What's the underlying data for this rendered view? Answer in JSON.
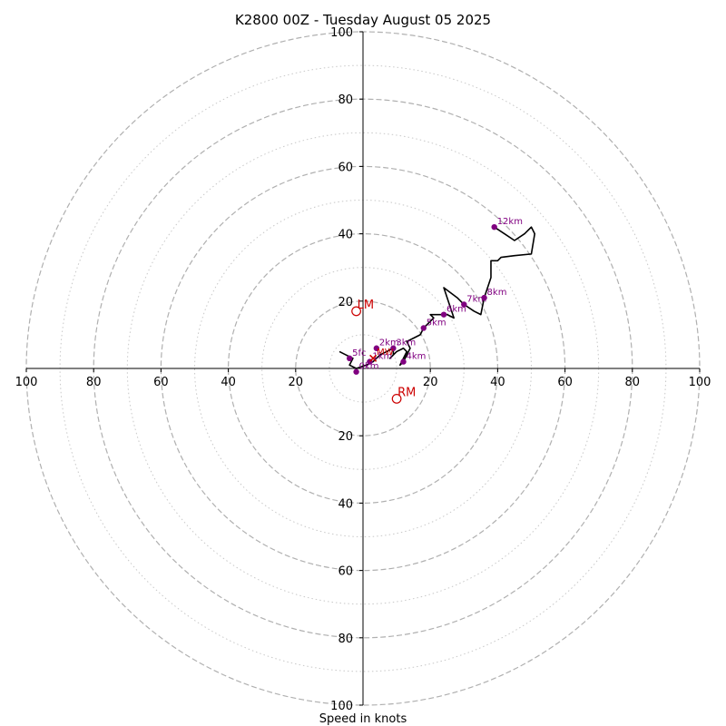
{
  "chart_data": {
    "type": "scatter",
    "subtype": "hodograph",
    "title": "K2800 00Z - Tuesday August 05 2025",
    "xlabel": "Speed in knots",
    "xlim": [
      -100,
      100
    ],
    "ylim": [
      -100,
      100
    ],
    "major_rings": [
      20,
      40,
      60,
      80,
      100
    ],
    "minor_rings": [
      10,
      30,
      50,
      70,
      90
    ],
    "x_tick_labels": [
      "100",
      "80",
      "60",
      "40",
      "20",
      "20",
      "40",
      "60",
      "80",
      "100"
    ],
    "x_tick_values": [
      -100,
      -80,
      -60,
      -40,
      -20,
      20,
      40,
      60,
      80,
      100
    ],
    "y_tick_labels": [
      "100",
      "80",
      "60",
      "40",
      "20",
      "20",
      "40",
      "60",
      "80",
      "100"
    ],
    "y_tick_values": [
      100,
      80,
      60,
      40,
      20,
      -20,
      -40,
      -60,
      -80,
      -100
    ],
    "colors": {
      "trace": "#000000",
      "height_points": "#800080",
      "motion": "#cc0000",
      "ring_major": "#b0b0b0",
      "ring_minor": "#c8c8c8"
    },
    "wind_trace": [
      [
        -7,
        5
      ],
      [
        -5,
        4
      ],
      [
        -3,
        3
      ],
      [
        -4,
        1
      ],
      [
        -2,
        0
      ],
      [
        1,
        1
      ],
      [
        3,
        2
      ],
      [
        5,
        4
      ],
      [
        7,
        5
      ],
      [
        9,
        6
      ],
      [
        9,
        4
      ],
      [
        8,
        3
      ],
      [
        10,
        5
      ],
      [
        12,
        6
      ],
      [
        13,
        5
      ],
      [
        12,
        3
      ],
      [
        11,
        1
      ],
      [
        12,
        2
      ],
      [
        14,
        6
      ],
      [
        13,
        8
      ],
      [
        15,
        9
      ],
      [
        17,
        10
      ],
      [
        18,
        12
      ],
      [
        20,
        14
      ],
      [
        21,
        15
      ],
      [
        20,
        16
      ],
      [
        24,
        16
      ],
      [
        25,
        16
      ],
      [
        27,
        15
      ],
      [
        26,
        18
      ],
      [
        24,
        24
      ],
      [
        28,
        21
      ],
      [
        30,
        19
      ],
      [
        33,
        17
      ],
      [
        35,
        16
      ],
      [
        36,
        21
      ],
      [
        37,
        24
      ],
      [
        38,
        27
      ],
      [
        38,
        32
      ],
      [
        40,
        32
      ],
      [
        41,
        33
      ],
      [
        45,
        33.5
      ],
      [
        50,
        34
      ],
      [
        51,
        40
      ],
      [
        50,
        42
      ],
      [
        48,
        40
      ],
      [
        45,
        38
      ],
      [
        42,
        40
      ],
      [
        39,
        42
      ]
    ],
    "height_points": [
      {
        "label": "0km",
        "x": -2,
        "y": -1
      },
      {
        "label": "5fc",
        "x": -4,
        "y": 3
      },
      {
        "label": "1km",
        "x": 2,
        "y": 2
      },
      {
        "label": "2km",
        "x": 4,
        "y": 6
      },
      {
        "label": "3km",
        "x": 9,
        "y": 6
      },
      {
        "label": "4km",
        "x": 12,
        "y": 2
      },
      {
        "label": "5km",
        "x": 18,
        "y": 12
      },
      {
        "label": "6km",
        "x": 24,
        "y": 16
      },
      {
        "label": "7km",
        "x": 30,
        "y": 19
      },
      {
        "label": "8km",
        "x": 36,
        "y": 21
      },
      {
        "label": "12km",
        "x": 39,
        "y": 42
      }
    ],
    "storm_motion": [
      {
        "label": "LM",
        "x": -2,
        "y": 17
      },
      {
        "label": "RM",
        "x": 10,
        "y": -9
      }
    ],
    "mean_wind": {
      "label": "MW",
      "x": 3,
      "y": 3
    }
  }
}
